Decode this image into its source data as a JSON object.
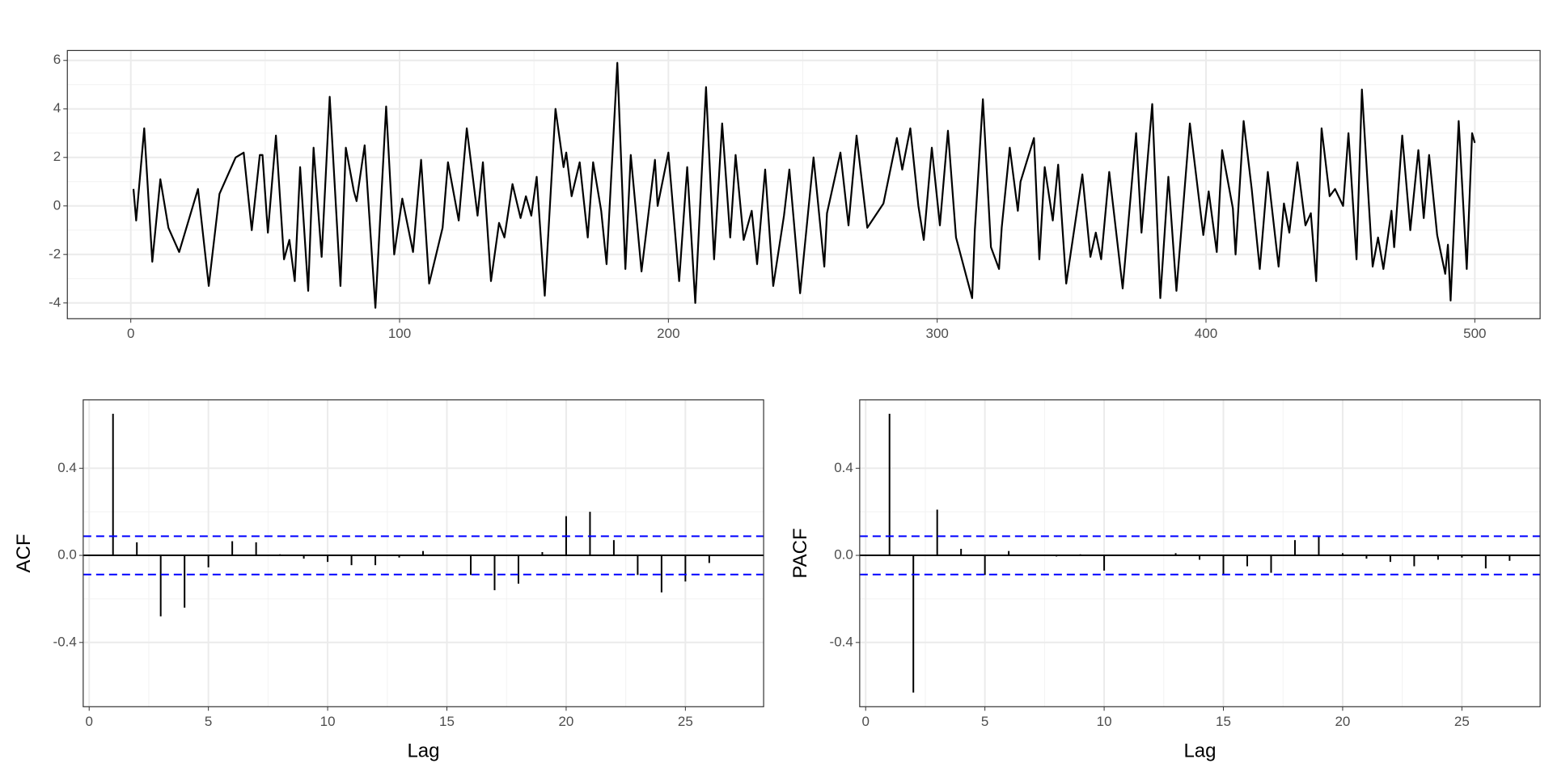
{
  "chart_data": [
    {
      "type": "line",
      "color": "#000000",
      "grid": true,
      "xlim": [
        -23.6,
        524.3
      ],
      "ylim": [
        -4.65,
        6.41
      ],
      "xticks": [
        0,
        100,
        200,
        300,
        400,
        500
      ],
      "yticks": [
        -4,
        -2,
        0,
        2,
        4,
        6
      ],
      "x": [
        1,
        2,
        5,
        8,
        11,
        14,
        18,
        25,
        29,
        33,
        39,
        42,
        45,
        48,
        49,
        51,
        54,
        57,
        59,
        61,
        63,
        66,
        68,
        71,
        74,
        78,
        80,
        83,
        84,
        87,
        91,
        95,
        98,
        101,
        105,
        108,
        111,
        116,
        118,
        122,
        125,
        129,
        131,
        134,
        137,
        139,
        142,
        145,
        147,
        149,
        151,
        154,
        158,
        161,
        162,
        164,
        167,
        170,
        172,
        175,
        177,
        181,
        184,
        186,
        190,
        195,
        196,
        200,
        204,
        207,
        210,
        214,
        217,
        220,
        223,
        225,
        228,
        231,
        233,
        236,
        239,
        243,
        245,
        249,
        254,
        258,
        259,
        264,
        267,
        270,
        274,
        280,
        285,
        287,
        290,
        293,
        295,
        298,
        301,
        304,
        307,
        313,
        314,
        317,
        320,
        323,
        324,
        327,
        330,
        331,
        336,
        338,
        340,
        343,
        345,
        348,
        354,
        357,
        359,
        361,
        364,
        369,
        374,
        376,
        380,
        383,
        386,
        389,
        394,
        399,
        401,
        404,
        406,
        410,
        411,
        414,
        417,
        420,
        423,
        427,
        429,
        431,
        434,
        437,
        439,
        441,
        443,
        446,
        448,
        451,
        453,
        456,
        458,
        462,
        464,
        466,
        469,
        470,
        473,
        476,
        479,
        481,
        483,
        486,
        489,
        490,
        491,
        494,
        497,
        499,
        500
      ],
      "values": [
        0.7,
        -0.6,
        3.2,
        -2.3,
        1.1,
        -0.9,
        -1.9,
        0.7,
        -3.3,
        0.5,
        2.0,
        2.2,
        -1.0,
        2.1,
        2.1,
        -1.1,
        2.9,
        -2.2,
        -1.4,
        -3.1,
        1.6,
        -3.5,
        2.4,
        -2.1,
        4.5,
        -3.3,
        2.4,
        0.6,
        0.2,
        2.5,
        -4.2,
        4.1,
        -2.0,
        0.3,
        -1.9,
        1.9,
        -3.2,
        -0.9,
        1.8,
        -0.6,
        3.2,
        -0.4,
        1.8,
        -3.1,
        -0.7,
        -1.3,
        0.9,
        -0.5,
        0.4,
        -0.4,
        1.2,
        -3.7,
        4.0,
        1.6,
        2.2,
        0.4,
        1.8,
        -1.3,
        1.8,
        -0.2,
        -2.4,
        5.9,
        -2.6,
        2.1,
        -2.7,
        1.9,
        0.0,
        2.2,
        -3.1,
        1.6,
        -4.0,
        4.9,
        -2.2,
        3.4,
        -1.3,
        2.1,
        -1.4,
        -0.2,
        -2.4,
        1.5,
        -3.3,
        -0.4,
        1.5,
        -3.6,
        2.0,
        -2.5,
        -0.3,
        2.2,
        -0.8,
        2.9,
        -0.9,
        0.1,
        2.8,
        1.5,
        3.2,
        0.0,
        -1.4,
        2.4,
        -0.8,
        3.1,
        -1.3,
        -3.8,
        -1.0,
        4.4,
        -1.7,
        -2.6,
        -0.9,
        2.4,
        -0.2,
        1.0,
        2.8,
        -2.2,
        1.6,
        -0.6,
        1.7,
        -3.2,
        1.3,
        -2.1,
        -1.1,
        -2.2,
        1.4,
        -3.4,
        3.0,
        -1.1,
        4.2,
        -3.8,
        1.2,
        -3.5,
        3.4,
        -1.2,
        0.6,
        -1.9,
        2.3,
        -0.1,
        -2.0,
        3.5,
        0.7,
        -2.6,
        1.4,
        -2.5,
        0.1,
        -1.1,
        1.8,
        -0.8,
        -0.3,
        -3.1,
        3.2,
        0.4,
        0.7,
        0.0,
        3.0,
        -2.2,
        4.8,
        -2.5,
        -1.3,
        -2.6,
        -0.2,
        -1.7,
        2.9,
        -1.0,
        2.3,
        -0.5,
        2.1,
        -1.2,
        -2.8,
        -1.6,
        -3.9,
        3.5,
        -2.6,
        3.0,
        2.6
      ]
    },
    {
      "type": "bar",
      "color": "#000000",
      "grid": true,
      "ylabel": "ACF",
      "xlabel": "Lag",
      "hlines": [
        0.088,
        -0.088
      ],
      "hline_color": "#0000ff",
      "xlim": [
        -0.25,
        28.28
      ],
      "ylim": [
        -0.695,
        0.714
      ],
      "xticks": [
        0,
        5,
        10,
        15,
        20,
        25
      ],
      "yticks": [
        {
          "value": -0.4,
          "label": "-0.4"
        },
        {
          "value": 0,
          "label": "0.0"
        },
        {
          "value": 0.4,
          "label": "0.4"
        }
      ],
      "x": [
        1,
        2,
        3,
        4,
        5,
        6,
        7,
        8,
        9,
        10,
        11,
        12,
        13,
        14,
        15,
        16,
        17,
        18,
        19,
        20,
        21,
        22,
        23,
        24,
        25,
        26
      ],
      "values": [
        0.65,
        0.06,
        -0.28,
        -0.24,
        -0.055,
        0.065,
        0.06,
        0.005,
        -0.015,
        -0.03,
        -0.045,
        -0.045,
        -0.01,
        0.02,
        0.0,
        -0.09,
        -0.16,
        -0.13,
        0.015,
        0.18,
        0.2,
        0.07,
        -0.09,
        -0.17,
        -0.12,
        -0.035
      ]
    },
    {
      "type": "bar",
      "color": "#000000",
      "grid": true,
      "ylabel": "PACF",
      "xlabel": "Lag",
      "hlines": [
        0.088,
        -0.088
      ],
      "hline_color": "#0000ff",
      "xlim": [
        -0.25,
        28.28
      ],
      "ylim": [
        -0.695,
        0.714
      ],
      "xticks": [
        0,
        5,
        10,
        15,
        20,
        25
      ],
      "yticks": [
        {
          "value": -0.4,
          "label": "-0.4"
        },
        {
          "value": 0,
          "label": "0.0"
        },
        {
          "value": 0.4,
          "label": "0.4"
        }
      ],
      "x": [
        1,
        2,
        3,
        4,
        5,
        6,
        7,
        8,
        9,
        10,
        11,
        12,
        13,
        14,
        15,
        16,
        17,
        18,
        19,
        20,
        21,
        22,
        23,
        24,
        25,
        26,
        27
      ],
      "values": [
        0.65,
        -0.63,
        0.21,
        0.03,
        -0.09,
        0.02,
        0.0,
        -0.005,
        0.005,
        -0.07,
        0.0,
        0.0,
        0.01,
        -0.02,
        -0.09,
        -0.05,
        -0.08,
        0.07,
        0.09,
        0.01,
        -0.015,
        -0.03,
        -0.05,
        -0.02,
        -0.01,
        -0.06,
        -0.025
      ]
    }
  ]
}
